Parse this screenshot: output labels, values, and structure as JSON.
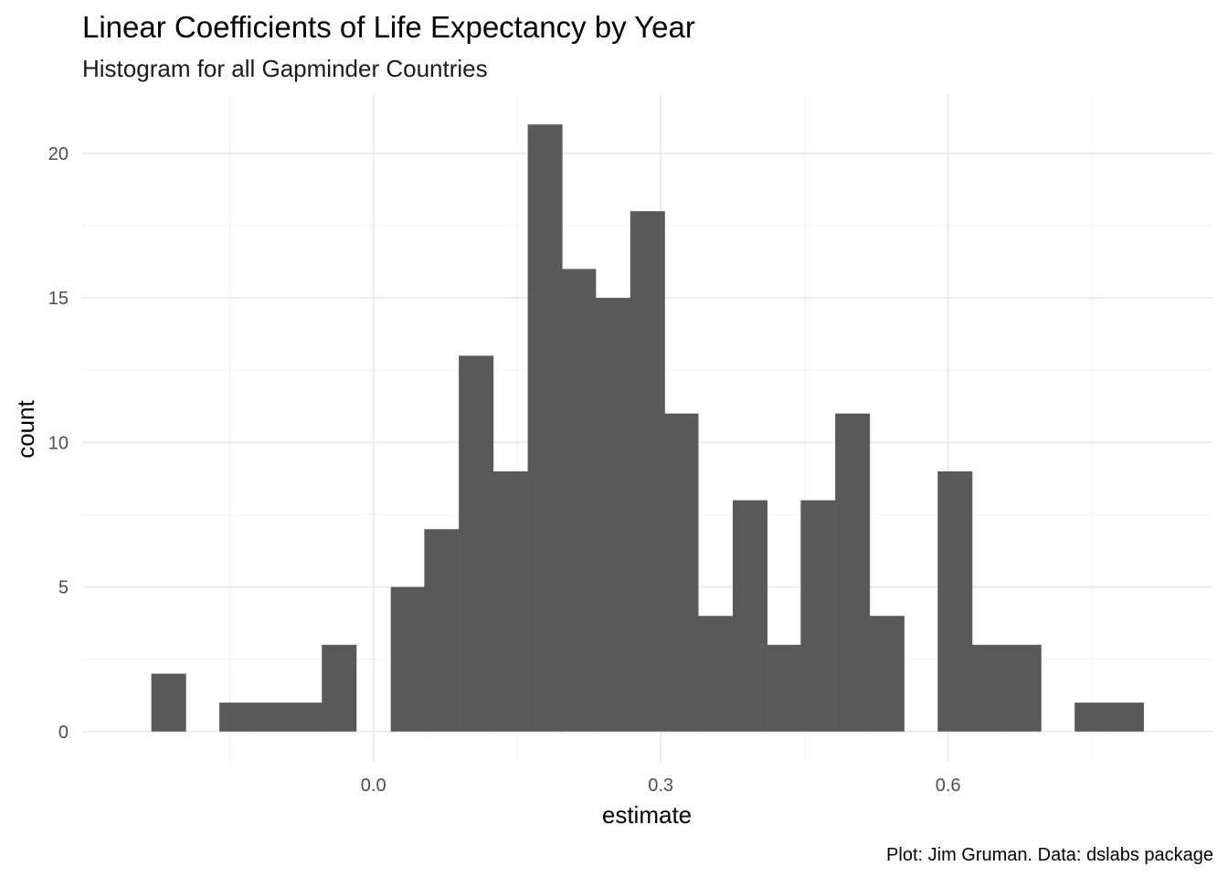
{
  "chart_data": {
    "type": "bar",
    "title": "Linear Coefficients of Life Expectancy by Year",
    "subtitle": "Histogram for all Gapminder Countries",
    "xlabel": "estimate",
    "ylabel": "count",
    "caption": "Plot: Jim Gruman. Data: dslabs package",
    "xlim": [
      -0.304,
      0.877
    ],
    "ylim": [
      -1.05,
      22.05
    ],
    "x_ticks": [
      {
        "value": 0.0,
        "label": "0.0"
      },
      {
        "value": 0.3,
        "label": "0.3"
      },
      {
        "value": 0.6,
        "label": "0.6"
      }
    ],
    "y_ticks": [
      {
        "value": 0,
        "label": "0"
      },
      {
        "value": 5,
        "label": "5"
      },
      {
        "value": 10,
        "label": "10"
      },
      {
        "value": 15,
        "label": "15"
      },
      {
        "value": 20,
        "label": "20"
      }
    ],
    "bin_width": 0.0357,
    "bin_centers": [
      -0.214,
      -0.179,
      -0.143,
      -0.107,
      -0.071,
      -0.036,
      0.0,
      0.036,
      0.071,
      0.107,
      0.143,
      0.179,
      0.214,
      0.25,
      0.286,
      0.321,
      0.357,
      0.393,
      0.429,
      0.464,
      0.5,
      0.536,
      0.571,
      0.607,
      0.643,
      0.679,
      0.714,
      0.75,
      0.786
    ],
    "counts": [
      2,
      0,
      1,
      1,
      1,
      3,
      0,
      5,
      7,
      13,
      9,
      21,
      16,
      15,
      18,
      11,
      4,
      8,
      3,
      8,
      11,
      4,
      0,
      9,
      3,
      3,
      0,
      1,
      1
    ],
    "grid": true,
    "bar_color": "#595959"
  }
}
